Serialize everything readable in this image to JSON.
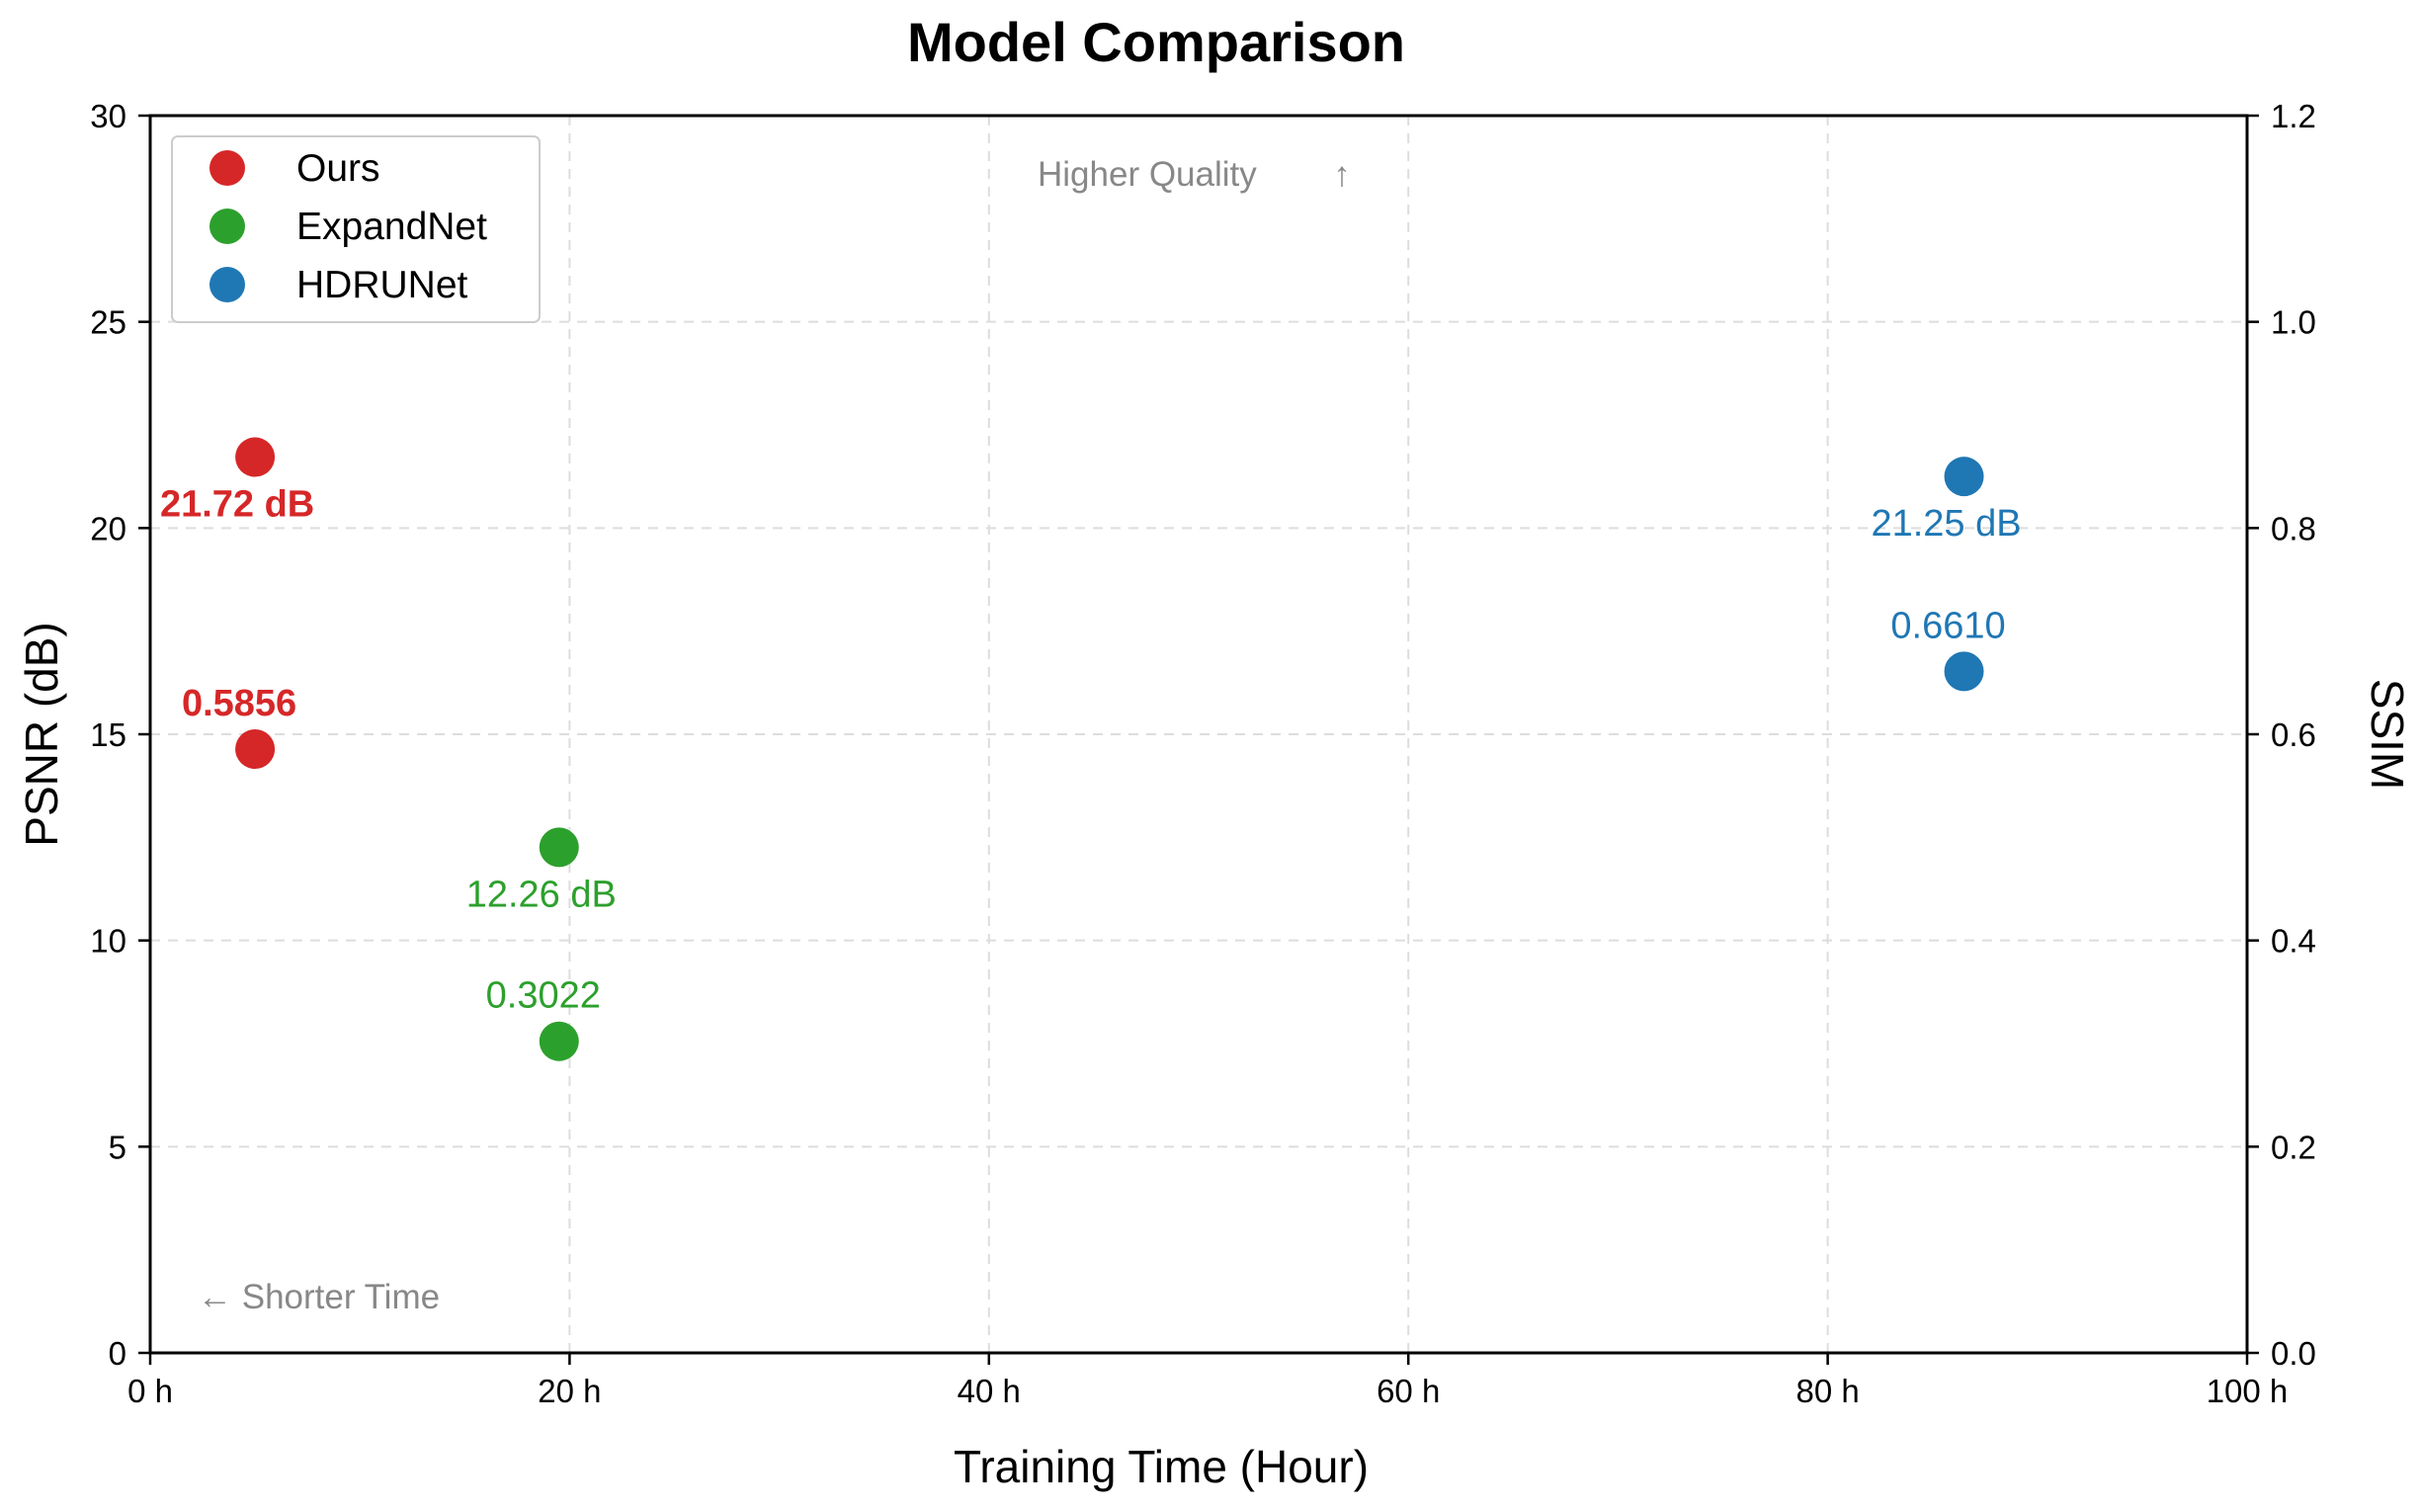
{
  "chart_data": {
    "type": "scatter",
    "title": "Model Comparison",
    "xlabel": "Training Time (Hour)",
    "ylabel_left": "PSNR (dB)",
    "ylabel_right": "SSIM",
    "xlim": [
      0,
      100
    ],
    "ylim_left": [
      0,
      30
    ],
    "ylim_right": [
      0.0,
      1.2
    ],
    "x_ticks": [
      0,
      20,
      40,
      60,
      80,
      100
    ],
    "x_tick_labels": [
      "0 h",
      "20 h",
      "40 h",
      "60 h",
      "80 h",
      "100 h"
    ],
    "y_left_ticks": [
      0,
      5,
      10,
      15,
      20,
      25,
      30
    ],
    "y_left_tick_labels": [
      "0",
      "5",
      "10",
      "15",
      "20",
      "25",
      "30"
    ],
    "y_right_ticks": [
      0.0,
      0.2,
      0.4,
      0.6,
      0.8,
      1.0,
      1.2
    ],
    "y_right_tick_labels": [
      "0.0",
      "0.2",
      "0.4",
      "0.6",
      "0.8",
      "1.0",
      "1.2"
    ],
    "grid": true,
    "legend_position": "top-left",
    "series": [
      {
        "name": "Ours",
        "color": "#d62728",
        "x": 5,
        "psnr": 21.72,
        "ssim": 0.5856,
        "psnr_label": "21.72 dB",
        "ssim_label": "0.5856",
        "bold_labels": true
      },
      {
        "name": "ExpandNet",
        "color": "#2ca02c",
        "x": 19.5,
        "psnr": 12.26,
        "ssim": 0.3022,
        "psnr_label": "12.26 dB",
        "ssim_label": "0.3022",
        "bold_labels": false
      },
      {
        "name": "HDRUNet",
        "color": "#1f77b4",
        "x": 86.5,
        "psnr": 21.25,
        "ssim": 0.661,
        "psnr_label": "21.25 dB",
        "ssim_label": "0.6610",
        "bold_labels": false
      }
    ],
    "annotations": {
      "quality": "Higher Quality",
      "quality_arrow": "↑",
      "time": "← Shorter Time"
    }
  }
}
